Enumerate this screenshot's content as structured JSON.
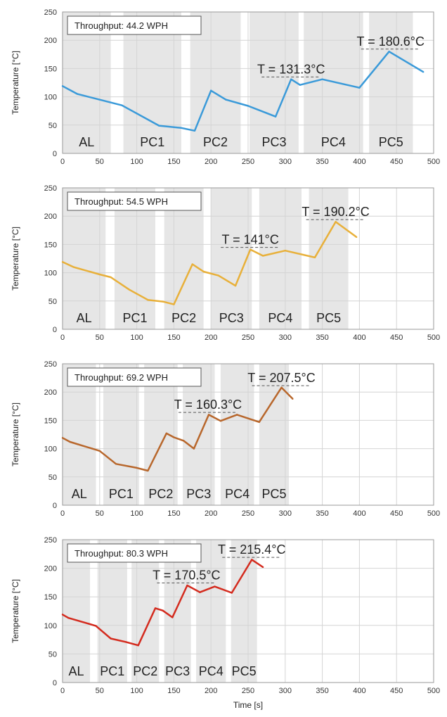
{
  "chart_data": [
    {
      "type": "line",
      "throughput": "Throughput: 44.2 WPH",
      "ylabel": "Temperature [°C]",
      "xlabel": "",
      "xlim": [
        0,
        500
      ],
      "ylim": [
        0,
        250
      ],
      "xticks": [
        "0",
        "50",
        "100",
        "150",
        "200",
        "250",
        "300",
        "350",
        "400",
        "450",
        "500"
      ],
      "yticks": [
        "0",
        "50",
        "100",
        "150",
        "200",
        "250"
      ],
      "grid": true,
      "color": "#3a9ad9",
      "x": [
        0,
        20,
        80,
        130,
        160,
        178,
        200,
        220,
        250,
        287,
        308,
        320,
        350,
        400,
        440,
        486
      ],
      "y": [
        119,
        105,
        85,
        49,
        45,
        40,
        111,
        95,
        84,
        65,
        131,
        121,
        131,
        116,
        180,
        144
      ],
      "zones": [
        {
          "label": "AL",
          "x0": 0,
          "x1": 65
        },
        {
          "label": "PC1",
          "x0": 82,
          "x1": 160
        },
        {
          "label": "PC2",
          "x0": 172,
          "x1": 240
        },
        {
          "label": "PC3",
          "x0": 252,
          "x1": 318
        },
        {
          "label": "PC4",
          "x0": 325,
          "x1": 405
        },
        {
          "label": "PC5",
          "x0": 413,
          "x1": 472
        }
      ],
      "annotations": [
        {
          "text": "T = 131.3°C",
          "x": 308,
          "y": 131.3
        },
        {
          "text": "T = 180.6°C",
          "x": 442,
          "y": 180.6
        }
      ]
    },
    {
      "type": "line",
      "throughput": "Throughput: 54.5 WPH",
      "ylabel": "Temperature [°C]",
      "xlabel": "",
      "xlim": [
        0,
        500
      ],
      "ylim": [
        0,
        250
      ],
      "xticks": [
        "0",
        "50",
        "100",
        "150",
        "200",
        "250",
        "300",
        "350",
        "400",
        "450",
        "500"
      ],
      "yticks": [
        "0",
        "50",
        "100",
        "150",
        "200",
        "250"
      ],
      "grid": true,
      "color": "#e8b03a",
      "x": [
        0,
        15,
        50,
        65,
        90,
        115,
        135,
        150,
        175,
        190,
        210,
        233,
        253,
        270,
        300,
        340,
        368,
        396
      ],
      "y": [
        119,
        110,
        97,
        92,
        70,
        52,
        49,
        44,
        115,
        102,
        95,
        77,
        141,
        130,
        139,
        127,
        190,
        163
      ],
      "zones": [
        {
          "label": "AL",
          "x0": 0,
          "x1": 58
        },
        {
          "label": "PC1",
          "x0": 70,
          "x1": 125
        },
        {
          "label": "PC2",
          "x0": 137,
          "x1": 190
        },
        {
          "label": "PC3",
          "x0": 200,
          "x1": 255
        },
        {
          "label": "PC4",
          "x0": 265,
          "x1": 322
        },
        {
          "label": "PC5",
          "x0": 332,
          "x1": 385
        }
      ],
      "annotations": [
        {
          "text": "T = 141°C",
          "x": 253,
          "y": 141
        },
        {
          "text": "T = 190.2°C",
          "x": 368,
          "y": 190.2
        }
      ]
    },
    {
      "type": "line",
      "throughput": "Throughput: 69.2 WPH",
      "ylabel": "Temperature [°C]",
      "xlabel": "",
      "xlim": [
        0,
        500
      ],
      "ylim": [
        0,
        250
      ],
      "xticks": [
        "0",
        "50",
        "100",
        "150",
        "200",
        "250",
        "300",
        "350",
        "400",
        "450",
        "500"
      ],
      "yticks": [
        "0",
        "50",
        "100",
        "150",
        "200",
        "250"
      ],
      "grid": true,
      "color": "#b8672c",
      "x": [
        0,
        10,
        40,
        50,
        72,
        100,
        115,
        140,
        150,
        163,
        177,
        197,
        213,
        235,
        265,
        295,
        310
      ],
      "y": [
        119,
        112,
        100,
        96,
        73,
        66,
        61,
        127,
        120,
        114,
        100,
        160,
        149,
        160,
        147,
        208,
        188
      ],
      "zones": [
        {
          "label": "AL",
          "x0": 0,
          "x1": 45
        },
        {
          "label": "PC1",
          "x0": 55,
          "x1": 103
        },
        {
          "label": "PC2",
          "x0": 110,
          "x1": 155
        },
        {
          "label": "PC3",
          "x0": 162,
          "x1": 205
        },
        {
          "label": "PC4",
          "x0": 213,
          "x1": 258
        },
        {
          "label": "PC5",
          "x0": 265,
          "x1": 305
        }
      ],
      "annotations": [
        {
          "text": "T = 160.3°C",
          "x": 196,
          "y": 160.3
        },
        {
          "text": "T = 207.5°C",
          "x": 295,
          "y": 207.5
        }
      ]
    },
    {
      "type": "line",
      "throughput": "Throughput: 80.3 WPH",
      "ylabel": "Temperature [°C]",
      "xlabel": "Time [s]",
      "xlim": [
        0,
        500
      ],
      "ylim": [
        0,
        250
      ],
      "xticks": [
        "0",
        "50",
        "100",
        "150",
        "200",
        "250",
        "300",
        "350",
        "400",
        "450",
        "500"
      ],
      "yticks": [
        "0",
        "50",
        "100",
        "150",
        "200",
        "250"
      ],
      "grid": true,
      "color": "#d42b1e",
      "x": [
        0,
        8,
        35,
        45,
        65,
        85,
        102,
        125,
        135,
        148,
        168,
        185,
        205,
        228,
        255,
        270
      ],
      "y": [
        119,
        113,
        103,
        99,
        77,
        71,
        65,
        130,
        126,
        114,
        170,
        158,
        168,
        157,
        215,
        202
      ],
      "zones": [
        {
          "label": "AL",
          "x0": 0,
          "x1": 37
        },
        {
          "label": "PC1",
          "x0": 47,
          "x1": 87
        },
        {
          "label": "PC2",
          "x0": 93,
          "x1": 130
        },
        {
          "label": "PC3",
          "x0": 137,
          "x1": 173
        },
        {
          "label": "PC4",
          "x0": 180,
          "x1": 220
        },
        {
          "label": "PC5",
          "x0": 227,
          "x1": 262
        }
      ],
      "annotations": [
        {
          "text": "T = 170.5°C",
          "x": 167,
          "y": 170.5
        },
        {
          "text": "T = 215.4°C",
          "x": 255,
          "y": 215.4
        }
      ]
    }
  ]
}
